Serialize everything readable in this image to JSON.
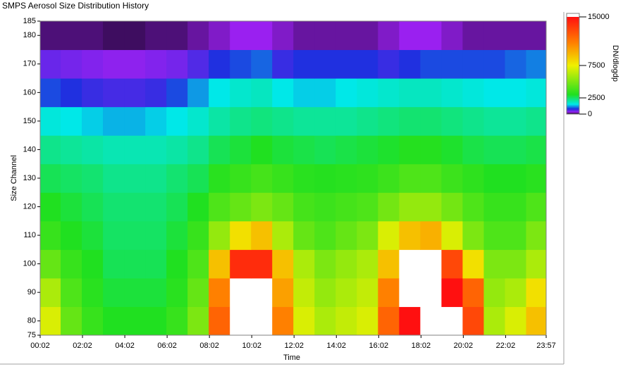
{
  "chart_data": {
    "type": "heatmap",
    "title": "SMPS Aerosol Size Distribution History",
    "xlabel": "Time",
    "ylabel": "Size Channel",
    "colorbar_label": "DN/dlogdp",
    "xlim": [
      0.033,
      23.95
    ],
    "xticks": [
      {
        "value": 0.033,
        "label": "00:02"
      },
      {
        "value": 2.033,
        "label": "02:02"
      },
      {
        "value": 4.033,
        "label": "04:02"
      },
      {
        "value": 6.033,
        "label": "06:02"
      },
      {
        "value": 8.033,
        "label": "08:02"
      },
      {
        "value": 10.033,
        "label": "10:02"
      },
      {
        "value": 12.033,
        "label": "12:02"
      },
      {
        "value": 14.033,
        "label": "14:02"
      },
      {
        "value": 16.033,
        "label": "16:02"
      },
      {
        "value": 18.033,
        "label": "18:02"
      },
      {
        "value": 20.033,
        "label": "20:02"
      },
      {
        "value": 22.033,
        "label": "22:02"
      },
      {
        "value": 23.95,
        "label": "23:57"
      }
    ],
    "ylim": [
      75,
      185
    ],
    "yticks": [
      75,
      80,
      90,
      100,
      110,
      120,
      130,
      140,
      150,
      160,
      170,
      180,
      185
    ],
    "xbins": [
      0.033,
      1,
      2,
      3,
      4,
      5,
      6,
      7,
      8,
      9,
      10,
      11,
      12,
      13,
      14,
      15,
      16,
      17,
      18,
      19,
      20,
      21,
      22,
      23,
      23.95
    ],
    "ybins": [
      75,
      85,
      95,
      105,
      115,
      125,
      135,
      145,
      155,
      165,
      175,
      185
    ],
    "clim": [
      0,
      15000
    ],
    "cticks": [
      0,
      2500,
      7500,
      15000
    ],
    "colorscale": [
      [
        0,
        "#000000"
      ],
      [
        300,
        "#9a20f0"
      ],
      [
        800,
        "#2030e0"
      ],
      [
        1500,
        "#00e8e8"
      ],
      [
        3000,
        "#20e020"
      ],
      [
        7500,
        "#f0f000"
      ],
      [
        11000,
        "#ff8000"
      ],
      [
        15000,
        "#ff1010"
      ]
    ],
    "over_color": "#ffffff",
    "z": [
      [
        7000,
        4500,
        3500,
        3000,
        3000,
        3000,
        3500,
        5000,
        12000,
        17000,
        17000,
        11000,
        7000,
        6000,
        6500,
        7000,
        12000,
        15000,
        17000,
        16000,
        13000,
        6000,
        7000,
        9000
      ],
      [
        6000,
        4000,
        3200,
        2800,
        2800,
        2800,
        3200,
        4500,
        11000,
        17000,
        17000,
        10000,
        6500,
        5500,
        6000,
        6500,
        11000,
        17000,
        17000,
        15000,
        12000,
        5500,
        6000,
        8000
      ],
      [
        4500,
        3500,
        3000,
        2600,
        2600,
        2600,
        3000,
        4000,
        9000,
        14000,
        14000,
        9000,
        6000,
        5000,
        5500,
        6000,
        9000,
        16000,
        16000,
        13000,
        8000,
        5000,
        5000,
        6000
      ],
      [
        3500,
        3000,
        2800,
        2500,
        2500,
        2500,
        2800,
        3500,
        5500,
        8000,
        9000,
        6000,
        4500,
        4000,
        4500,
        5000,
        7000,
        9000,
        9500,
        7000,
        5000,
        4000,
        4000,
        5000
      ],
      [
        3000,
        2800,
        2600,
        2400,
        2400,
        2400,
        2600,
        3000,
        4000,
        4500,
        5000,
        4500,
        3800,
        3600,
        3800,
        4000,
        4800,
        5500,
        5500,
        4800,
        4000,
        3500,
        3500,
        4000
      ],
      [
        2600,
        2500,
        2400,
        2200,
        2200,
        2200,
        2400,
        2600,
        3200,
        3500,
        3800,
        3500,
        3200,
        3100,
        3200,
        3300,
        3600,
        4000,
        4000,
        3600,
        3300,
        3000,
        3000,
        3200
      ],
      [
        2200,
        2100,
        2000,
        1900,
        1900,
        1900,
        2000,
        2200,
        2600,
        2800,
        3000,
        2800,
        2700,
        2600,
        2700,
        2800,
        2900,
        3100,
        3100,
        2900,
        2700,
        2600,
        2600,
        2700
      ],
      [
        1600,
        1500,
        1400,
        1300,
        1300,
        1400,
        1500,
        1700,
        2000,
        2200,
        2300,
        2200,
        2100,
        2100,
        2100,
        2200,
        2300,
        2400,
        2400,
        2300,
        2200,
        2100,
        2100,
        2200
      ],
      [
        900,
        800,
        700,
        650,
        650,
        700,
        900,
        1200,
        1500,
        1700,
        1800,
        1500,
        1400,
        1400,
        1500,
        1600,
        1700,
        1800,
        1800,
        1700,
        1600,
        1500,
        1500,
        1600
      ],
      [
        500,
        450,
        400,
        350,
        350,
        400,
        450,
        600,
        800,
        900,
        1000,
        700,
        800,
        800,
        800,
        800,
        700,
        800,
        900,
        900,
        900,
        900,
        1000,
        1100
      ],
      [
        150,
        150,
        150,
        120,
        120,
        150,
        150,
        200,
        250,
        300,
        300,
        250,
        200,
        200,
        200,
        200,
        250,
        300,
        300,
        250,
        200,
        200,
        200,
        200
      ]
    ]
  }
}
